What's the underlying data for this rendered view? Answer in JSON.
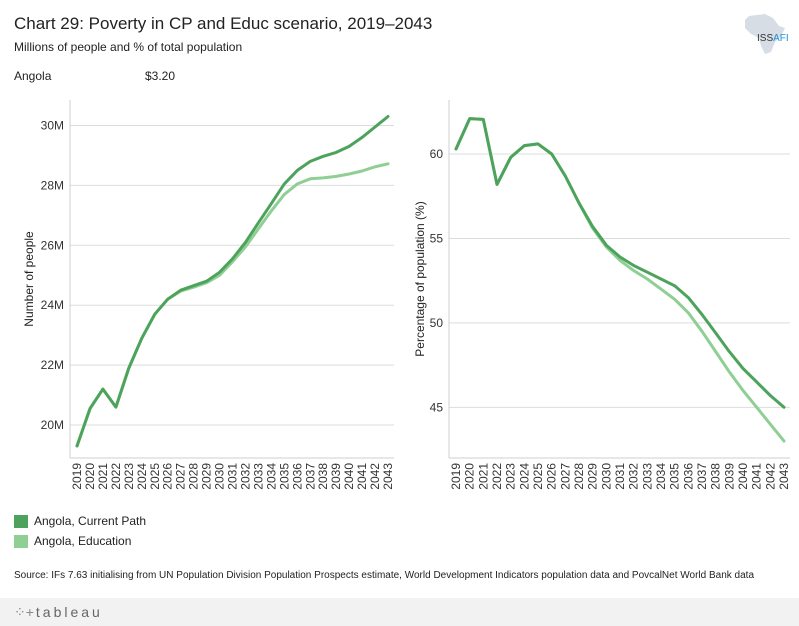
{
  "header": {
    "title": "Chart 29: Poverty in CP and Educ scenario, 2019–2043",
    "subtitle": "Millions of people and % of total population",
    "country": "Angola",
    "threshold": "$3.20"
  },
  "logo": {
    "text_part1": "ISS",
    "text_part2": "AFI"
  },
  "legend": {
    "items": [
      {
        "label": "Angola,  Current Path",
        "color": "#4ea35c"
      },
      {
        "label": "Angola,  Education",
        "color": "#8fcf94"
      }
    ]
  },
  "source": "Source: IFs 7.63 initialising from UN Population Division Population Prospects estimate, World Development Indicators population data and PovcalNet World Bank data",
  "footer": {
    "brand": "tableau"
  },
  "chart_data": [
    {
      "type": "line",
      "ylabel": "Number of people",
      "xlabel": "",
      "x": [
        "2019",
        "2020",
        "2021",
        "2022",
        "2023",
        "2024",
        "2025",
        "2026",
        "2027",
        "2028",
        "2029",
        "2030",
        "2031",
        "2032",
        "2033",
        "2034",
        "2035",
        "2036",
        "2037",
        "2038",
        "2039",
        "2040",
        "2041",
        "2042",
        "2043"
      ],
      "ylim": [
        18.9,
        30.85
      ],
      "yticks": [
        20,
        22,
        24,
        26,
        28,
        30
      ],
      "ytick_labels": [
        "20M",
        "22M",
        "24M",
        "26M",
        "28M",
        "30M"
      ],
      "grid": true,
      "series": [
        {
          "name": "Angola, Current Path",
          "color": "#4ea35c",
          "values": [
            19.3,
            20.55,
            21.2,
            20.6,
            21.9,
            22.9,
            23.7,
            24.2,
            24.5,
            24.65,
            24.8,
            25.1,
            25.55,
            26.1,
            26.75,
            27.4,
            28.05,
            28.5,
            28.8,
            28.97,
            29.1,
            29.3,
            29.6,
            29.95,
            30.3
          ]
        },
        {
          "name": "Angola, Education",
          "color": "#8fcf94",
          "values": [
            19.3,
            20.55,
            21.2,
            20.6,
            21.9,
            22.9,
            23.7,
            24.2,
            24.47,
            24.6,
            24.75,
            25.0,
            25.45,
            25.95,
            26.55,
            27.15,
            27.7,
            28.05,
            28.22,
            28.25,
            28.3,
            28.38,
            28.48,
            28.62,
            28.72
          ]
        }
      ]
    },
    {
      "type": "line",
      "ylabel": "Percentage of population (%)",
      "xlabel": "",
      "x": [
        "2019",
        "2020",
        "2021",
        "2022",
        "2023",
        "2024",
        "2025",
        "2026",
        "2027",
        "2028",
        "2029",
        "2030",
        "2031",
        "2032",
        "2033",
        "2034",
        "2035",
        "2036",
        "2037",
        "2038",
        "2039",
        "2040",
        "2041",
        "2042",
        "2043"
      ],
      "ylim": [
        42.0,
        63.2
      ],
      "yticks": [
        45,
        50,
        55,
        60
      ],
      "ytick_labels": [
        "45",
        "50",
        "55",
        "60"
      ],
      "grid": true,
      "series": [
        {
          "name": "Angola, Current Path",
          "color": "#4ea35c",
          "values": [
            60.3,
            62.1,
            62.05,
            58.2,
            59.8,
            60.5,
            60.6,
            60.0,
            58.7,
            57.1,
            55.7,
            54.6,
            53.9,
            53.4,
            53.0,
            52.6,
            52.2,
            51.5,
            50.5,
            49.4,
            48.3,
            47.3,
            46.5,
            45.7,
            45.0
          ]
        },
        {
          "name": "Angola, Education",
          "color": "#8fcf94",
          "values": [
            60.3,
            62.1,
            62.05,
            58.2,
            59.8,
            60.5,
            60.6,
            60.0,
            58.7,
            57.1,
            55.6,
            54.5,
            53.7,
            53.1,
            52.6,
            52.0,
            51.4,
            50.6,
            49.5,
            48.3,
            47.1,
            46.0,
            45.0,
            44.0,
            43.0
          ]
        }
      ]
    }
  ]
}
